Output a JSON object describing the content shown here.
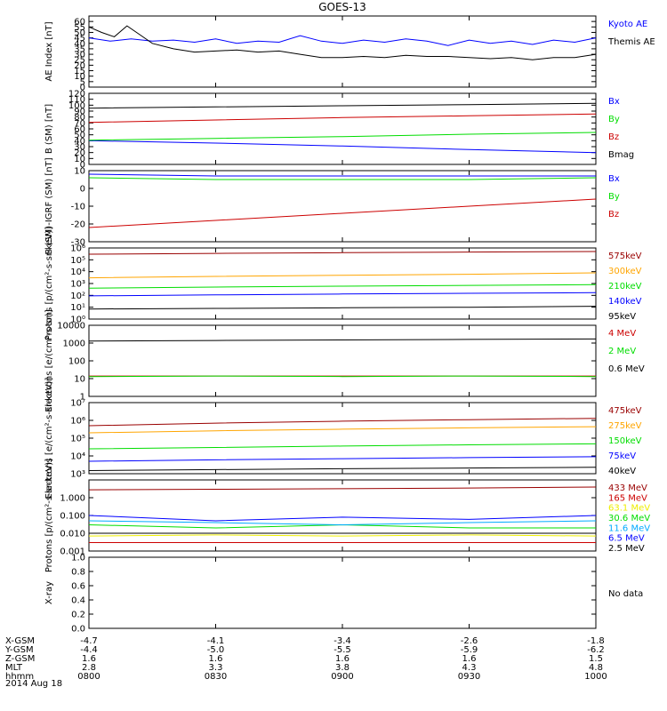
{
  "title": "GOES-13",
  "colors": {
    "black": "#000000",
    "blue": "#0000ff",
    "red": "#cc0000",
    "green": "#00dd00",
    "orange": "#ffa500",
    "cyan": "#00aaff",
    "yellow": "#eeee00",
    "maroon": "#990000"
  },
  "x_axis": {
    "start": "0800",
    "end": "1000",
    "tick_hhmm": [
      "0800",
      "0830",
      "0900",
      "0930",
      "1000"
    ]
  },
  "ephemeris": {
    "rows": [
      {
        "label": "X-GSM",
        "values": [
          "-4.7",
          "-4.1",
          "-3.4",
          "-2.6",
          "-1.8"
        ]
      },
      {
        "label": "Y-GSM",
        "values": [
          "-4.4",
          "-5.0",
          "-5.5",
          "-5.9",
          "-6.2"
        ]
      },
      {
        "label": "Z-GSM",
        "values": [
          "1.6",
          "1.6",
          "1.6",
          "1.6",
          "1.5"
        ]
      },
      {
        "label": "MLT",
        "values": [
          "2.8",
          "3.3",
          "3.8",
          "4.3",
          "4.8"
        ]
      },
      {
        "label": "hhmm",
        "values": [
          "0800",
          "0830",
          "0900",
          "0930",
          "1000"
        ]
      }
    ],
    "date": "2014 Aug 18"
  },
  "chart_data": [
    {
      "type": "line",
      "ylabel": "AE Index [nT]",
      "ylim": [
        0,
        65
      ],
      "yscale": "linear",
      "yticks": [
        "0",
        "5",
        "10",
        "15",
        "20",
        "25",
        "30",
        "35",
        "40",
        "45",
        "50",
        "55",
        "60"
      ],
      "series": [
        {
          "name": "Kyoto AE",
          "color": "#0000ff",
          "x": [
            "0800",
            "0805",
            "0810",
            "0815",
            "0820",
            "0825",
            "0830",
            "0835",
            "0840",
            "0845",
            "0850",
            "0855",
            "0900",
            "0905",
            "0910",
            "0915",
            "0920",
            "0925",
            "0930",
            "0935",
            "0940",
            "0945",
            "0950",
            "0955",
            "1000"
          ],
          "y": [
            45,
            42,
            44,
            42,
            43,
            41,
            44,
            40,
            42,
            41,
            47,
            42,
            40,
            43,
            41,
            44,
            42,
            38,
            43,
            40,
            42,
            39,
            43,
            41,
            45
          ]
        },
        {
          "name": "Themis AE",
          "color": "#000000",
          "x": [
            "0800",
            "0803",
            "0806",
            "0809",
            "0812",
            "0815",
            "0820",
            "0825",
            "0830",
            "0835",
            "0840",
            "0845",
            "0850",
            "0855",
            "0900",
            "0905",
            "0910",
            "0915",
            "0920",
            "0925",
            "0930",
            "0935",
            "0940",
            "0945",
            "0950",
            "0955",
            "1000"
          ],
          "y": [
            55,
            50,
            46,
            56,
            48,
            40,
            35,
            32,
            33,
            34,
            32,
            33,
            30,
            27,
            27,
            28,
            27,
            29,
            28,
            28,
            27,
            26,
            27,
            25,
            27,
            27,
            30
          ]
        }
      ]
    },
    {
      "type": "line",
      "ylabel": "B (SM) [nT]",
      "ylim": [
        0,
        120
      ],
      "yscale": "linear",
      "yticks": [
        "0",
        "10",
        "20",
        "30",
        "40",
        "50",
        "60",
        "70",
        "80",
        "90",
        "100",
        "110",
        "120"
      ],
      "series": [
        {
          "name": "Bx",
          "color": "#0000ff",
          "x": [
            "0800",
            "0830",
            "0900",
            "0930",
            "1000"
          ],
          "y": [
            40,
            36,
            31,
            25,
            20
          ]
        },
        {
          "name": "By",
          "color": "#00dd00",
          "x": [
            "0800",
            "0830",
            "0900",
            "0930",
            "1000"
          ],
          "y": [
            41,
            44,
            47,
            51,
            54
          ]
        },
        {
          "name": "Bz",
          "color": "#cc0000",
          "x": [
            "0800",
            "0830",
            "0900",
            "0930",
            "1000"
          ],
          "y": [
            71,
            75,
            79,
            82,
            85
          ]
        },
        {
          "name": "Bmag",
          "color": "#000000",
          "x": [
            "0800",
            "0830",
            "0900",
            "0930",
            "1000"
          ],
          "y": [
            95,
            97,
            99,
            101,
            103
          ]
        }
      ]
    },
    {
      "type": "line",
      "ylabel": "B (SM)-IGRF (SM) [nT]",
      "ylim": [
        -30,
        10
      ],
      "yscale": "linear",
      "yticks": [
        "-30",
        "-20",
        "-10",
        "0",
        "10"
      ],
      "series": [
        {
          "name": "Bx",
          "color": "#0000ff",
          "x": [
            "0800",
            "0830",
            "0900",
            "0930",
            "1000"
          ],
          "y": [
            8,
            7,
            7,
            7,
            7
          ]
        },
        {
          "name": "By",
          "color": "#00dd00",
          "x": [
            "0800",
            "0830",
            "0900",
            "0930",
            "1000"
          ],
          "y": [
            6,
            5,
            5,
            5,
            6
          ]
        },
        {
          "name": "Bz",
          "color": "#cc0000",
          "x": [
            "0800",
            "0830",
            "0900",
            "0930",
            "1000"
          ],
          "y": [
            -22,
            -18,
            -14,
            -10,
            -6
          ]
        }
      ]
    },
    {
      "type": "line",
      "ylabel": "Protons [p/(cm²-s-sr-keV)]",
      "ylim": [
        1,
        1000000
      ],
      "yscale": "log",
      "yticks": [
        "10⁰",
        "10¹",
        "10²",
        "10³",
        "10⁴",
        "10⁵",
        "10⁶"
      ],
      "series": [
        {
          "name": "575keV",
          "color": "#990000",
          "x": [
            "0800",
            "0830",
            "0900",
            "0930",
            "1000"
          ],
          "y": [
            300000,
            350000,
            400000,
            450000,
            500000
          ]
        },
        {
          "name": "300keV",
          "color": "#ffa500",
          "x": [
            "0800",
            "0830",
            "0900",
            "0930",
            "1000"
          ],
          "y": [
            3000,
            4000,
            5000,
            6000,
            8000
          ]
        },
        {
          "name": "210keV",
          "color": "#00dd00",
          "x": [
            "0800",
            "0830",
            "0900",
            "0930",
            "1000"
          ],
          "y": [
            400,
            500,
            600,
            700,
            800
          ]
        },
        {
          "name": "140keV",
          "color": "#0000ff",
          "x": [
            "0800",
            "0830",
            "0900",
            "0930",
            "1000"
          ],
          "y": [
            90,
            110,
            130,
            150,
            170
          ]
        },
        {
          "name": "95keV",
          "color": "#000000",
          "x": [
            "0800",
            "0830",
            "0900",
            "0930",
            "1000"
          ],
          "y": [
            7,
            8,
            9,
            10,
            12
          ]
        }
      ]
    },
    {
      "type": "line",
      "ylabel": "Electrons [e/(cm²-s-sr)]",
      "ylim": [
        1,
        10000
      ],
      "yscale": "log",
      "yticks": [
        "1",
        "10",
        "100",
        "1000",
        "10000"
      ],
      "series": [
        {
          "name": "4 MeV",
          "color": "#cc0000",
          "x": [
            "0800",
            "0830",
            "0900",
            "0930",
            "1000"
          ],
          "y": [
            14,
            14,
            14,
            14,
            14
          ]
        },
        {
          "name": "2 MeV",
          "color": "#00dd00",
          "x": [
            "0800",
            "0830",
            "0900",
            "0930",
            "1000"
          ],
          "y": [
            13,
            14,
            13,
            14,
            13
          ]
        },
        {
          "name": "0.6 MeV",
          "color": "#000000",
          "x": [
            "0800",
            "0830",
            "0900",
            "0930",
            "1000"
          ],
          "y": [
            1300,
            1400,
            1500,
            1600,
            1700
          ]
        }
      ]
    },
    {
      "type": "line",
      "ylabel": "Electrons [e/(cm²-s-sr-keV)]",
      "ylim": [
        1000,
        10000000
      ],
      "yscale": "log",
      "yticks": [
        "10³",
        "10⁴",
        "10⁵",
        "10⁶",
        "10⁷"
      ],
      "series": [
        {
          "name": "475keV",
          "color": "#990000",
          "x": [
            "0800",
            "0830",
            "0900",
            "0930",
            "1000"
          ],
          "y": [
            500000,
            700000,
            900000,
            1100000,
            1300000
          ]
        },
        {
          "name": "275keV",
          "color": "#ffa500",
          "x": [
            "0800",
            "0830",
            "0900",
            "0930",
            "1000"
          ],
          "y": [
            200000,
            260000,
            320000,
            380000,
            440000
          ]
        },
        {
          "name": "150keV",
          "color": "#00dd00",
          "x": [
            "0800",
            "0830",
            "0900",
            "0930",
            "1000"
          ],
          "y": [
            25000,
            30000,
            36000,
            42000,
            48000
          ]
        },
        {
          "name": "75keV",
          "color": "#0000ff",
          "x": [
            "0800",
            "0830",
            "0900",
            "0930",
            "1000"
          ],
          "y": [
            5000,
            6000,
            7000,
            8000,
            9000
          ]
        },
        {
          "name": "40keV",
          "color": "#000000",
          "x": [
            "0800",
            "0830",
            "0900",
            "0930",
            "1000"
          ],
          "y": [
            1500,
            1700,
            1900,
            2100,
            2300
          ]
        }
      ]
    },
    {
      "type": "line",
      "ylabel": "Protons [p/(cm²-s-sr-keV)]",
      "ylim": [
        0.001,
        10
      ],
      "yscale": "log",
      "yticks": [
        "0.001",
        "0.010",
        "0.100",
        "1.000"
      ],
      "series": [
        {
          "name": "433 MeV",
          "color": "#990000",
          "x": [
            "0800",
            "0830",
            "0900",
            "0930",
            "1000"
          ],
          "y": [
            2.8,
            3.0,
            3.2,
            3.5,
            4.0
          ]
        },
        {
          "name": "165 MeV",
          "color": "#cc0000",
          "x": [
            "0800",
            "0830",
            "0900",
            "0930",
            "1000"
          ],
          "y": [
            0.003,
            0.003,
            0.003,
            0.003,
            0.003
          ]
        },
        {
          "name": "63.1 MeV",
          "color": "#eeee00",
          "x": [
            "0800",
            "0830",
            "0900",
            "0930",
            "1000"
          ],
          "y": [
            0.007,
            0.008,
            0.007,
            0.008,
            0.007
          ]
        },
        {
          "name": "30.6 MeV",
          "color": "#00dd00",
          "x": [
            "0800",
            "0830",
            "0900",
            "0930",
            "1000"
          ],
          "y": [
            0.03,
            0.02,
            0.03,
            0.02,
            0.02
          ]
        },
        {
          "name": "11.6 MeV",
          "color": "#00aaff",
          "x": [
            "0800",
            "0830",
            "0900",
            "0930",
            "1000"
          ],
          "y": [
            0.05,
            0.04,
            0.03,
            0.04,
            0.05
          ]
        },
        {
          "name": "6.5 MeV",
          "color": "#0000ff",
          "x": [
            "0800",
            "0830",
            "0900",
            "0930",
            "1000"
          ],
          "y": [
            0.1,
            0.05,
            0.08,
            0.06,
            0.1
          ]
        },
        {
          "name": "2.5 MeV",
          "color": "#000000",
          "x": [
            "0800",
            "0830",
            "0900",
            "0930",
            "1000"
          ],
          "y": [
            0.01,
            0.01,
            0.01,
            0.01,
            0.01
          ]
        }
      ]
    },
    {
      "type": "line",
      "ylabel": "X-ray",
      "ylim": [
        0,
        1
      ],
      "yscale": "linear",
      "yticks": [
        "0.0",
        "0.2",
        "0.4",
        "0.6",
        "0.8",
        "1.0"
      ],
      "note": "No data",
      "series": []
    }
  ]
}
